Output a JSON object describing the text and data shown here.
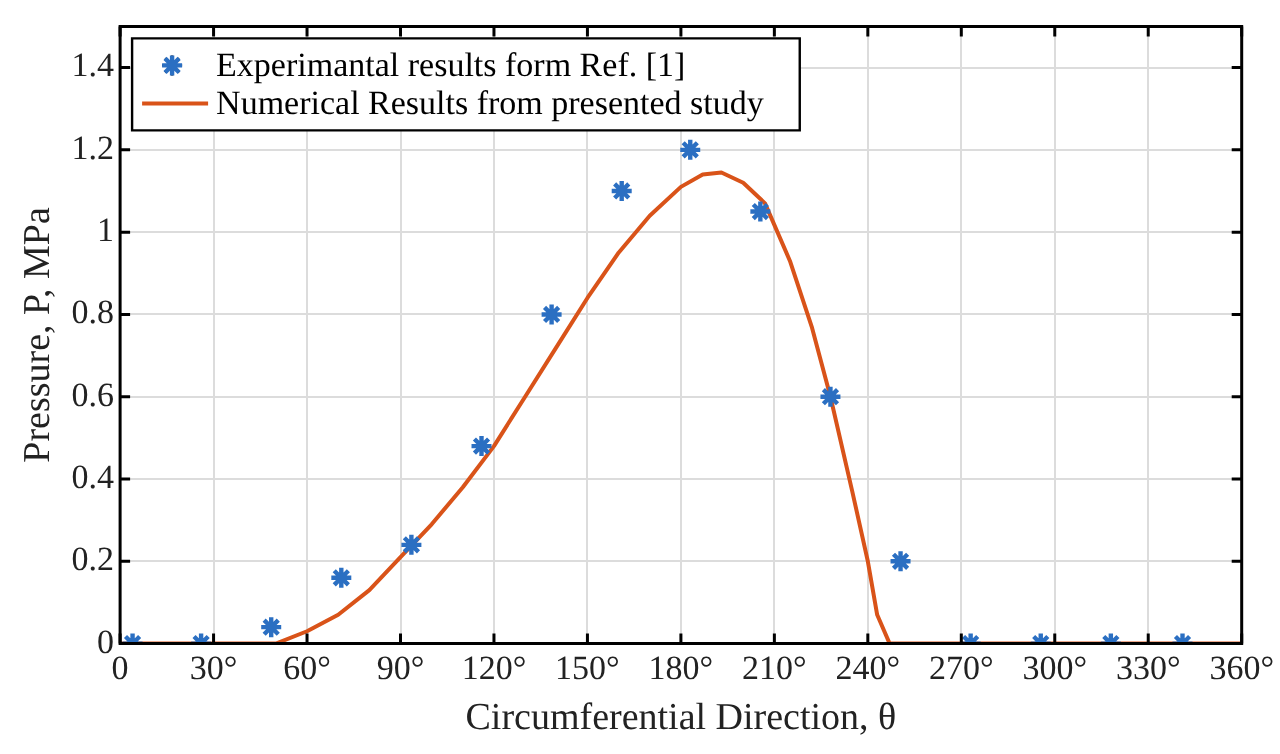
{
  "chart_data": {
    "type": "scatter",
    "xlabel": "Circumferential Direction, θ",
    "ylabel": "Pressure, P, MPa",
    "xlim": [
      0,
      360
    ],
    "xticks": [
      {
        "value": 0,
        "label": "0"
      },
      {
        "value": 30,
        "label": "30°"
      },
      {
        "value": 60,
        "label": "60°"
      },
      {
        "value": 90,
        "label": "90°"
      },
      {
        "value": 120,
        "label": "120°"
      },
      {
        "value": 150,
        "label": "150°"
      },
      {
        "value": 180,
        "label": "180°"
      },
      {
        "value": 210,
        "label": "210°"
      },
      {
        "value": 240,
        "label": "240°"
      },
      {
        "value": 270,
        "label": "270°"
      },
      {
        "value": 300,
        "label": "300°"
      },
      {
        "value": 330,
        "label": "330°"
      },
      {
        "value": 360,
        "label": "360°"
      }
    ],
    "ylim": [
      0,
      1.5
    ],
    "yticks": [
      0,
      0.2,
      0.4,
      0.6,
      0.8,
      1,
      1.2,
      1.4
    ],
    "grid": true,
    "legend": "top left",
    "marker": "cross",
    "series": [
      {
        "name": "Experimantal results form Ref. [1]",
        "color": "#2b6fc2",
        "x": [
          4,
          26,
          48.5,
          71,
          93.5,
          116,
          138.5,
          161,
          183,
          205.5,
          228,
          250.5,
          273,
          295.5,
          318,
          341
        ],
        "values": [
          0,
          0,
          0.04,
          0.16,
          0.24,
          0.48,
          0.8,
          1.1,
          1.2,
          1.05,
          0.6,
          0.2,
          0,
          0,
          0,
          0
        ]
      },
      {
        "name": "Numerical Results from presented study",
        "type": "line",
        "color": "#d95319",
        "marker": "none",
        "x": [
          0,
          50,
          60,
          70,
          80,
          90,
          100,
          110,
          120,
          130,
          140,
          150,
          160,
          170,
          180,
          187,
          193,
          200,
          207,
          215,
          222,
          228,
          235,
          240,
          243,
          247,
          360
        ],
        "values": [
          0,
          0,
          0.03,
          0.07,
          0.13,
          0.21,
          0.29,
          0.38,
          0.48,
          0.6,
          0.72,
          0.84,
          0.95,
          1.04,
          1.11,
          1.14,
          1.145,
          1.12,
          1.07,
          0.93,
          0.77,
          0.6,
          0.37,
          0.2,
          0.07,
          0,
          0
        ]
      }
    ]
  }
}
